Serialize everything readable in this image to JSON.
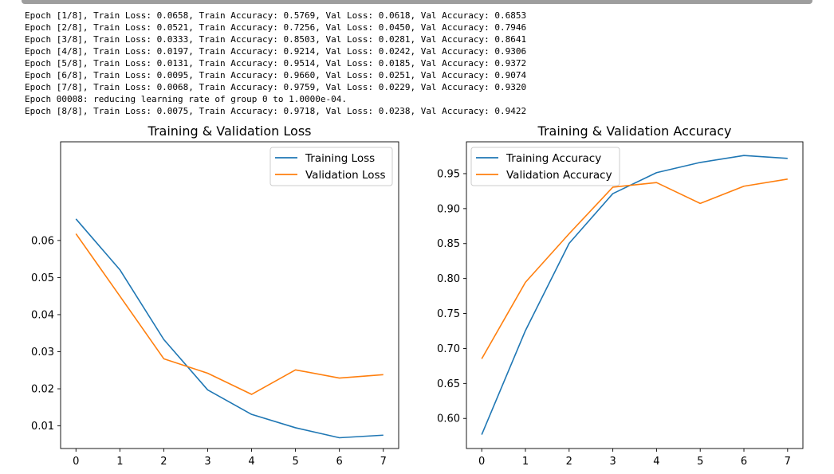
{
  "log": {
    "lines": [
      "Epoch [1/8], Train Loss: 0.0658, Train Accuracy: 0.5769, Val Loss: 0.0618, Val Accuracy: 0.6853",
      "Epoch [2/8], Train Loss: 0.0521, Train Accuracy: 0.7256, Val Loss: 0.0450, Val Accuracy: 0.7946",
      "Epoch [3/8], Train Loss: 0.0333, Train Accuracy: 0.8503, Val Loss: 0.0281, Val Accuracy: 0.8641",
      "Epoch [4/8], Train Loss: 0.0197, Train Accuracy: 0.9214, Val Loss: 0.0242, Val Accuracy: 0.9306",
      "Epoch [5/8], Train Loss: 0.0131, Train Accuracy: 0.9514, Val Loss: 0.0185, Val Accuracy: 0.9372",
      "Epoch [6/8], Train Loss: 0.0095, Train Accuracy: 0.9660, Val Loss: 0.0251, Val Accuracy: 0.9074",
      "Epoch [7/8], Train Loss: 0.0068, Train Accuracy: 0.9759, Val Loss: 0.0229, Val Accuracy: 0.9320",
      "Epoch 00008: reducing learning rate of group 0 to 1.0000e-04.",
      "Epoch [8/8], Train Loss: 0.0075, Train Accuracy: 0.9718, Val Loss: 0.0238, Val Accuracy: 0.9422"
    ]
  },
  "colors": {
    "series1": "#1f77b4",
    "series2": "#ff7f0e"
  },
  "chart_data": [
    {
      "type": "line",
      "title": "Training & Validation Loss",
      "x": [
        0,
        1,
        2,
        3,
        4,
        5,
        6,
        7
      ],
      "xticks": [
        "0",
        "1",
        "2",
        "3",
        "4",
        "5",
        "6",
        "7"
      ],
      "xlim": [
        -0.35,
        7.35
      ],
      "yticks": [
        0.01,
        0.02,
        0.03,
        0.04,
        0.05,
        0.06
      ],
      "ytick_labels": [
        "0.01",
        "0.02",
        "0.03",
        "0.04",
        "0.05",
        "0.06"
      ],
      "ylim": [
        0.0039,
        0.0866
      ],
      "legend": "top-right",
      "grid": false,
      "series": [
        {
          "name": "Training Loss",
          "values": [
            0.0658,
            0.0521,
            0.0333,
            0.0197,
            0.0131,
            0.0095,
            0.0068,
            0.0075
          ]
        },
        {
          "name": "Validation Loss",
          "values": [
            0.0618,
            0.045,
            0.0281,
            0.0242,
            0.0185,
            0.0251,
            0.0229,
            0.0238
          ]
        }
      ]
    },
    {
      "type": "line",
      "title": "Training & Validation Accuracy",
      "x": [
        0,
        1,
        2,
        3,
        4,
        5,
        6,
        7
      ],
      "xticks": [
        "0",
        "1",
        "2",
        "3",
        "4",
        "5",
        "6",
        "7"
      ],
      "xlim": [
        -0.35,
        7.35
      ],
      "yticks": [
        0.6,
        0.65,
        0.7,
        0.75,
        0.8,
        0.85,
        0.9,
        0.95
      ],
      "ytick_labels": [
        "0.60",
        "0.65",
        "0.70",
        "0.75",
        "0.80",
        "0.85",
        "0.90",
        "0.95"
      ],
      "ylim": [
        0.557,
        0.9955
      ],
      "legend": "top-left",
      "grid": false,
      "series": [
        {
          "name": "Training Accuracy",
          "values": [
            0.5769,
            0.7256,
            0.8503,
            0.9214,
            0.9514,
            0.966,
            0.9759,
            0.9718
          ]
        },
        {
          "name": "Validation Accuracy",
          "values": [
            0.6853,
            0.7946,
            0.8641,
            0.9306,
            0.9372,
            0.9074,
            0.932,
            0.9422
          ]
        }
      ]
    }
  ]
}
